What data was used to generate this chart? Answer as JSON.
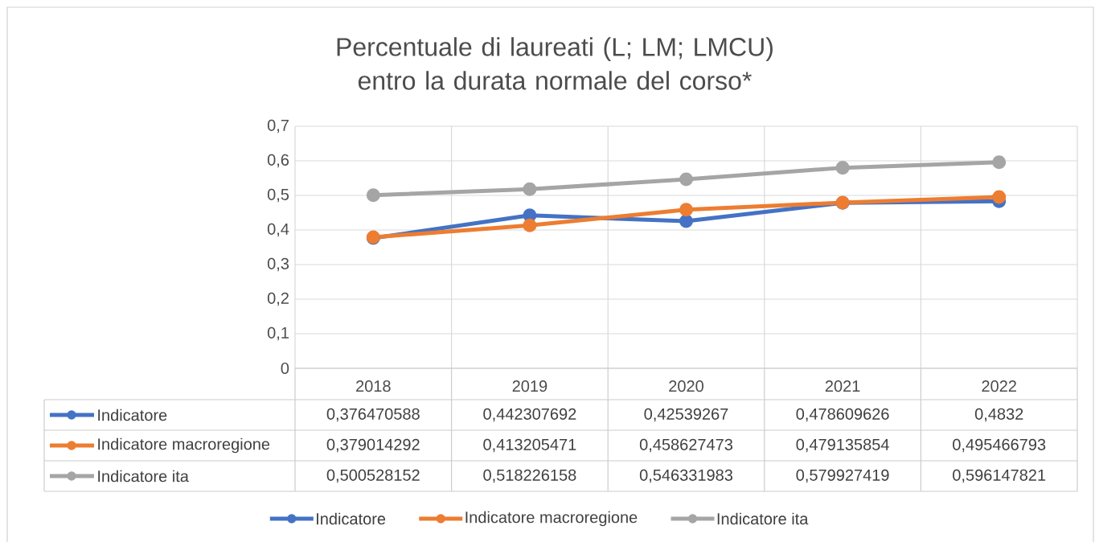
{
  "chart_data": {
    "type": "line",
    "title": "Percentuale di laureati (L; LM; LMCU) entro la durata normale del corso*",
    "categories": [
      "2018",
      "2019",
      "2020",
      "2021",
      "2022"
    ],
    "series": [
      {
        "name": "Indicatore",
        "color": "#4472c4",
        "values": [
          0.376470588,
          0.442307692,
          0.42539267,
          0.478609626,
          0.4832
        ],
        "value_labels": [
          "0,376470588",
          "0,442307692",
          "0,42539267",
          "0,478609626",
          "0,4832"
        ]
      },
      {
        "name": "Indicatore macroregione",
        "color": "#ed7d31",
        "values": [
          0.379014292,
          0.413205471,
          0.458627473,
          0.479135854,
          0.495466793
        ],
        "value_labels": [
          "0,379014292",
          "0,413205471",
          "0,458627473",
          "0,479135854",
          "0,495466793"
        ]
      },
      {
        "name": "Indicatore ita",
        "color": "#a5a5a5",
        "values": [
          0.500528152,
          0.518226158,
          0.546331983,
          0.579927419,
          0.596147821
        ],
        "value_labels": [
          "0,500528152",
          "0,518226158",
          "0,546331983",
          "0,579927419",
          "0,596147821"
        ]
      }
    ],
    "ylim": [
      0,
      0.7
    ],
    "yticks": [
      {
        "value": 0,
        "label": "0"
      },
      {
        "value": 0.1,
        "label": "0,1"
      },
      {
        "value": 0.2,
        "label": "0,2"
      },
      {
        "value": 0.3,
        "label": "0,3"
      },
      {
        "value": 0.4,
        "label": "0,4"
      },
      {
        "value": 0.5,
        "label": "0,5"
      },
      {
        "value": 0.6,
        "label": "0,6"
      },
      {
        "value": 0.7,
        "label": "0,7"
      }
    ],
    "grid": true,
    "legend": "bottom",
    "marker": "circle"
  }
}
